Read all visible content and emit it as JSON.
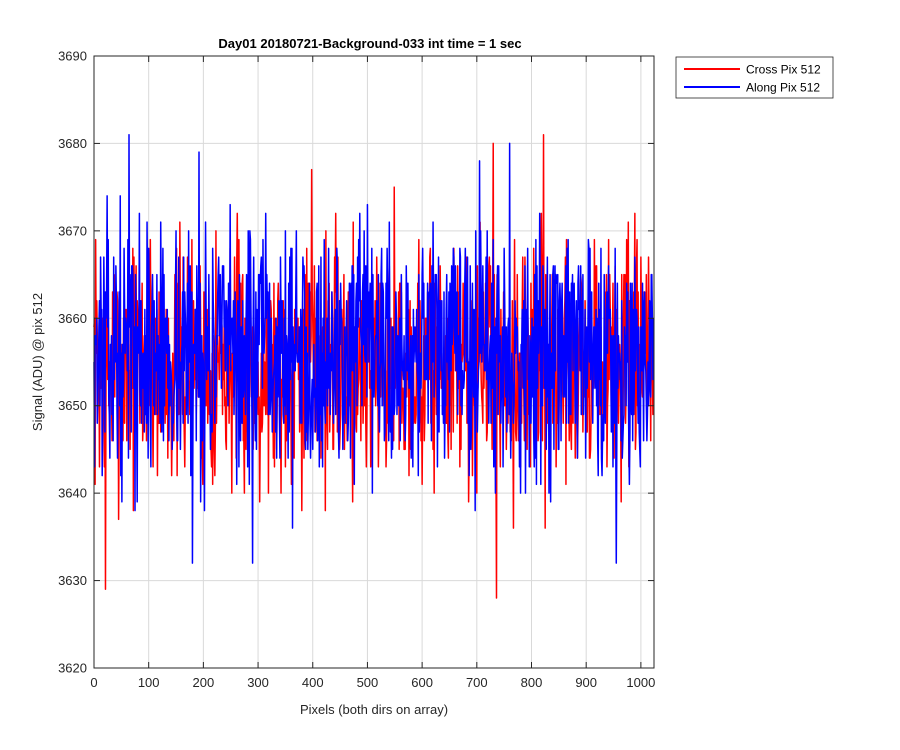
{
  "chart_data": {
    "type": "line",
    "title": "Day01 20180721-Background-033 int time = 1 sec",
    "xlabel": "Pixels (both dirs on array)",
    "ylabel": "Signal (ADU) @ pix 512",
    "xlim": [
      0,
      1024
    ],
    "ylim": [
      3620,
      3690
    ],
    "xticks": [
      0,
      100,
      200,
      300,
      400,
      500,
      600,
      700,
      800,
      900,
      1000
    ],
    "yticks": [
      3620,
      3630,
      3640,
      3650,
      3660,
      3670,
      3680,
      3690
    ],
    "grid": true,
    "legend_position": "outside-top-right",
    "series": [
      {
        "name": "Cross Pix 512",
        "color": "#ff0000",
        "mean": 3655,
        "spread": 7,
        "num_points": 1024,
        "seed": 7,
        "notable_points": [
          [
            21,
            3629
          ],
          [
            736,
            3628
          ],
          [
            822,
            3681
          ],
          [
            730,
            3680
          ],
          [
            398,
            3677
          ],
          [
            549,
            3675
          ]
        ]
      },
      {
        "name": "Along Pix 512",
        "color": "#0000ff",
        "mean": 3656,
        "spread": 7,
        "num_points": 1024,
        "seed": 13,
        "notable_points": [
          [
            64,
            3681
          ],
          [
            192,
            3679
          ],
          [
            180,
            3632
          ],
          [
            290,
            3632
          ],
          [
            955,
            3632
          ],
          [
            760,
            3680
          ],
          [
            705,
            3678
          ]
        ]
      }
    ]
  }
}
